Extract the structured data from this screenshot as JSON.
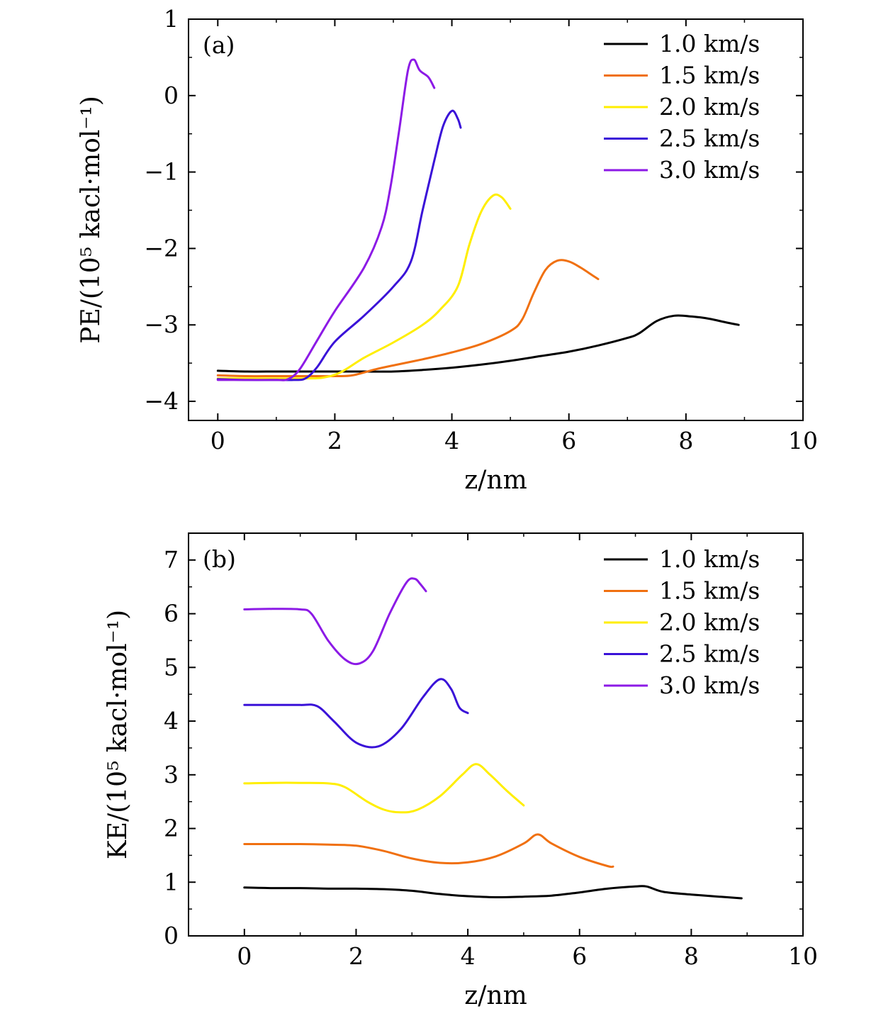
{
  "chart_data": [
    {
      "type": "line",
      "panel_label": "(a)",
      "xlabel": "z/nm",
      "ylabel": "PE/(10⁵ kacl·mol⁻¹)",
      "xlim": [
        -0.5,
        10
      ],
      "ylim": [
        -4.25,
        1
      ],
      "xticks": [
        0,
        2,
        4,
        6,
        8,
        10
      ],
      "xtick_labels": [
        "0",
        "2",
        "4",
        "6",
        "8",
        "10"
      ],
      "yticks": [
        1,
        0,
        -1,
        -2,
        -3,
        -4
      ],
      "ytick_labels": [
        "1",
        "0",
        "−1",
        "−2",
        "−3",
        "−4"
      ],
      "legend_position": "top-right",
      "grid": false,
      "series": [
        {
          "name": "1.0 km/s",
          "color": "#000000",
          "x": [
            0,
            0.5,
            1,
            1.5,
            2,
            2.5,
            3,
            3.5,
            4,
            4.5,
            5,
            5.5,
            6,
            6.5,
            7,
            7.2,
            7.5,
            7.8,
            8.1,
            8.4,
            8.7,
            8.9
          ],
          "y": [
            -3.6,
            -3.61,
            -3.61,
            -3.61,
            -3.61,
            -3.61,
            -3.61,
            -3.59,
            -3.56,
            -3.52,
            -3.47,
            -3.41,
            -3.35,
            -3.27,
            -3.17,
            -3.11,
            -2.95,
            -2.88,
            -2.89,
            -2.92,
            -2.97,
            -3.0
          ]
        },
        {
          "name": "1.5 km/s",
          "color": "#f07010",
          "x": [
            0,
            0.5,
            1,
            1.5,
            2,
            2.3,
            2.7,
            3,
            3.5,
            4,
            4.5,
            5,
            5.2,
            5.4,
            5.6,
            5.8,
            6.0,
            6.2,
            6.4,
            6.5
          ],
          "y": [
            -3.66,
            -3.67,
            -3.67,
            -3.67,
            -3.67,
            -3.66,
            -3.58,
            -3.53,
            -3.45,
            -3.36,
            -3.25,
            -3.08,
            -2.93,
            -2.58,
            -2.28,
            -2.16,
            -2.17,
            -2.25,
            -2.35,
            -2.4
          ]
        },
        {
          "name": "2.0 km/s",
          "color": "#ffee00",
          "x": [
            0,
            0.5,
            1,
            1.5,
            1.8,
            2.1,
            2.5,
            3,
            3.5,
            3.8,
            4.1,
            4.3,
            4.5,
            4.7,
            4.85,
            5.0
          ],
          "y": [
            -3.7,
            -3.7,
            -3.7,
            -3.7,
            -3.69,
            -3.62,
            -3.43,
            -3.23,
            -3.0,
            -2.8,
            -2.5,
            -1.95,
            -1.52,
            -1.31,
            -1.33,
            -1.48
          ]
        },
        {
          "name": "2.5 km/s",
          "color": "#3a12d8",
          "x": [
            0,
            0.5,
            1,
            1.3,
            1.5,
            1.7,
            2,
            2.5,
            3,
            3.3,
            3.5,
            3.7,
            3.85,
            4.0,
            4.1,
            4.15
          ],
          "y": [
            -3.71,
            -3.72,
            -3.72,
            -3.72,
            -3.7,
            -3.55,
            -3.22,
            -2.88,
            -2.5,
            -2.17,
            -1.5,
            -0.85,
            -0.4,
            -0.2,
            -0.3,
            -0.42
          ]
        },
        {
          "name": "3.0 km/s",
          "color": "#8c1ae6",
          "x": [
            0,
            0.5,
            1,
            1.2,
            1.4,
            1.7,
            2,
            2.5,
            2.8,
            2.95,
            3.1,
            3.25,
            3.35,
            3.45,
            3.6,
            3.7
          ],
          "y": [
            -3.72,
            -3.72,
            -3.72,
            -3.71,
            -3.58,
            -3.2,
            -2.82,
            -2.25,
            -1.72,
            -1.2,
            -0.45,
            0.33,
            0.47,
            0.33,
            0.24,
            0.1
          ]
        }
      ]
    },
    {
      "type": "line",
      "panel_label": "(b)",
      "xlabel": "z/nm",
      "ylabel": "KE/(10⁵ kacl·mol⁻¹)",
      "xlim": [
        -1,
        10
      ],
      "ylim": [
        0,
        7.5
      ],
      "xticks": [
        0,
        2,
        4,
        6,
        8,
        10
      ],
      "xtick_labels": [
        "0",
        "2",
        "4",
        "6",
        "8",
        "10"
      ],
      "yticks": [
        0,
        1,
        2,
        3,
        4,
        5,
        6,
        7
      ],
      "ytick_labels": [
        "0",
        "1",
        "2",
        "3",
        "4",
        "5",
        "6",
        "7"
      ],
      "legend_position": "top-right",
      "grid": false,
      "series": [
        {
          "name": "1.0 km/s",
          "color": "#000000",
          "x": [
            0,
            0.5,
            1,
            1.5,
            2,
            2.5,
            3,
            3.5,
            4,
            4.5,
            5,
            5.5,
            6,
            6.5,
            7,
            7.2,
            7.5,
            8,
            8.5,
            8.9
          ],
          "y": [
            0.9,
            0.89,
            0.89,
            0.88,
            0.88,
            0.87,
            0.84,
            0.78,
            0.74,
            0.72,
            0.73,
            0.75,
            0.81,
            0.88,
            0.92,
            0.92,
            0.82,
            0.77,
            0.73,
            0.7
          ]
        },
        {
          "name": "1.5 km/s",
          "color": "#f07010",
          "x": [
            0,
            0.5,
            1,
            1.5,
            2,
            2.5,
            3,
            3.5,
            4,
            4.5,
            5,
            5.25,
            5.5,
            6,
            6.5,
            6.6
          ],
          "y": [
            1.71,
            1.71,
            1.71,
            1.7,
            1.68,
            1.58,
            1.44,
            1.36,
            1.37,
            1.48,
            1.72,
            1.89,
            1.72,
            1.47,
            1.3,
            1.29
          ]
        },
        {
          "name": "2.0 km/s",
          "color": "#ffee00",
          "x": [
            0,
            0.5,
            1,
            1.5,
            1.8,
            2.2,
            2.5,
            2.8,
            3.1,
            3.5,
            3.9,
            4.15,
            4.4,
            4.7,
            5.0
          ],
          "y": [
            2.84,
            2.85,
            2.85,
            2.84,
            2.77,
            2.5,
            2.35,
            2.3,
            2.35,
            2.6,
            3.0,
            3.2,
            3.0,
            2.7,
            2.43
          ]
        },
        {
          "name": "2.5 km/s",
          "color": "#3a12d8",
          "x": [
            0,
            0.5,
            1,
            1.3,
            1.6,
            2,
            2.4,
            2.8,
            3.2,
            3.5,
            3.7,
            3.85,
            4.0
          ],
          "y": [
            4.3,
            4.3,
            4.3,
            4.28,
            4.0,
            3.6,
            3.53,
            3.85,
            4.45,
            4.78,
            4.6,
            4.25,
            4.15
          ]
        },
        {
          "name": "3.0 km/s",
          "color": "#8c1ae6",
          "x": [
            0,
            0.5,
            1,
            1.2,
            1.5,
            1.8,
            2.05,
            2.3,
            2.6,
            2.9,
            3.05,
            3.15,
            3.25
          ],
          "y": [
            6.08,
            6.09,
            6.08,
            6.0,
            5.5,
            5.15,
            5.07,
            5.3,
            6.0,
            6.58,
            6.65,
            6.55,
            6.42
          ]
        }
      ]
    }
  ]
}
